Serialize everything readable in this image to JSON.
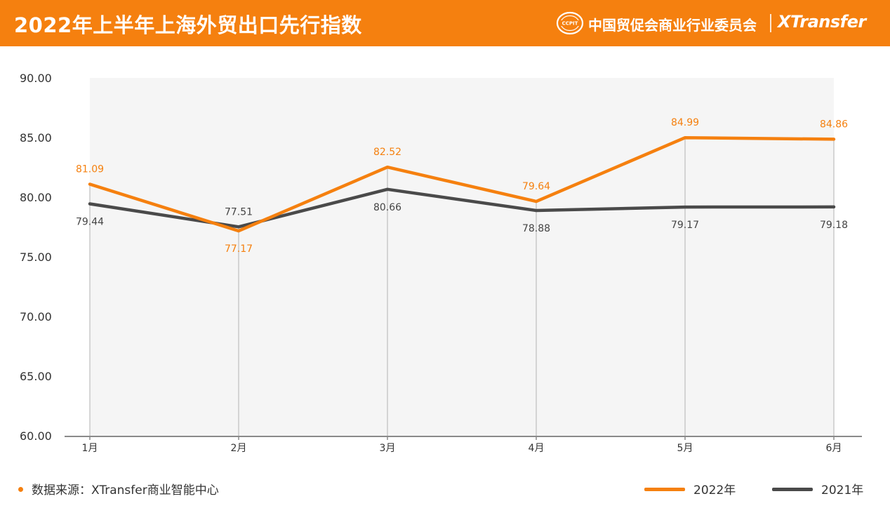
{
  "header": {
    "title": "2022年上半年上海外贸出口先行指数",
    "org_name": "中国贸促会商业行业委员会",
    "org_logo_text": "CCPIT",
    "brand": "XTransfer"
  },
  "colors": {
    "header_bg": "#f5800f",
    "series_2022": "#f5800f",
    "series_2021": "#4a4a4a",
    "plot_bg": "#f5f5f5",
    "guide": "#bdbdbd"
  },
  "chart_data": {
    "type": "line",
    "title": "2022年上半年上海外贸出口先行指数",
    "xlabel": "",
    "ylabel": "",
    "categories": [
      "1月",
      "2月",
      "3月",
      "4月",
      "5月",
      "6月"
    ],
    "ylim": [
      60,
      90
    ],
    "yticks": [
      60,
      65,
      70,
      75,
      80,
      85,
      90
    ],
    "ytick_labels": [
      "60.00",
      "65.00",
      "70.00",
      "75.00",
      "80.00",
      "85.00",
      "90.00"
    ],
    "grid": false,
    "legend_position": "bottom-right",
    "series": [
      {
        "name": "2022年",
        "values": [
          81.09,
          77.17,
          82.52,
          79.64,
          84.99,
          84.86
        ],
        "labels": [
          "81.09",
          "77.17",
          "82.52",
          "79.64",
          "84.99",
          "84.86"
        ],
        "label_pos": [
          "above",
          "below",
          "above",
          "above",
          "above",
          "above"
        ]
      },
      {
        "name": "2021年",
        "values": [
          79.44,
          77.51,
          80.66,
          78.88,
          79.17,
          79.18
        ],
        "labels": [
          "79.44",
          "77.51",
          "80.66",
          "78.88",
          "79.17",
          "79.18"
        ],
        "label_pos": [
          "below",
          "above",
          "below",
          "below",
          "below",
          "below"
        ]
      }
    ]
  },
  "footer": {
    "source": "数据来源：XTransfer商业智能中心"
  }
}
